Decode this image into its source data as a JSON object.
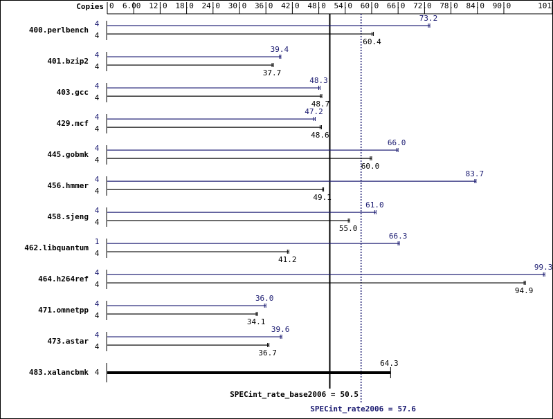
{
  "chart_data": {
    "type": "hbar",
    "copies_label": "Copies",
    "categories": [
      "400.perlbench",
      "401.bzip2",
      "403.gcc",
      "429.mcf",
      "445.gobmk",
      "456.hmmer",
      "458.sjeng",
      "462.libquantum",
      "464.h264ref",
      "471.omnetpp",
      "473.astar",
      "483.xalancbmk"
    ],
    "series": [
      {
        "color": "#191970",
        "values": [
          73.2,
          39.4,
          48.3,
          47.2,
          66.0,
          83.7,
          61.0,
          66.3,
          99.3,
          36.0,
          39.6,
          null
        ],
        "value_labels": [
          "73.2",
          "39.4",
          "48.3",
          "47.2",
          "66.0",
          "83.7",
          "61.0",
          "66.3",
          "99.3",
          "36.0",
          "39.6",
          null
        ],
        "copies": [
          4,
          4,
          4,
          4,
          4,
          4,
          4,
          1,
          4,
          4,
          4,
          null
        ]
      },
      {
        "color": "#000000",
        "values": [
          60.4,
          37.7,
          48.7,
          48.6,
          60.0,
          49.1,
          55.0,
          41.2,
          94.9,
          34.1,
          36.7,
          64.3
        ],
        "value_labels": [
          "60.4",
          "37.7",
          "48.7",
          "48.6",
          "60.0",
          "49.1",
          "55.0",
          "41.2",
          "94.9",
          "34.1",
          "36.7",
          "64.3"
        ],
        "copies": [
          4,
          4,
          4,
          4,
          4,
          4,
          4,
          4,
          4,
          4,
          4,
          4
        ]
      }
    ],
    "xlim": [
      0,
      101
    ],
    "xticks": [
      0,
      {
        "value": 6,
        "label": "6.00"
      },
      {
        "value": 12,
        "label": "12.0"
      },
      {
        "value": 18,
        "label": "18.0"
      },
      {
        "value": 24,
        "label": "24.0"
      },
      {
        "value": 30,
        "label": "30.0"
      },
      {
        "value": 36,
        "label": "36.0"
      },
      {
        "value": 42,
        "label": "42.0"
      },
      {
        "value": 48,
        "label": "48.0"
      },
      {
        "value": 54,
        "label": "54.0"
      },
      {
        "value": 60,
        "label": "60.0"
      },
      {
        "value": 66,
        "label": "66.0"
      },
      {
        "value": 72,
        "label": "72.0"
      },
      {
        "value": 78,
        "label": "78.0"
      },
      {
        "value": 84,
        "label": "84.0"
      },
      {
        "value": 90,
        "label": "90.0"
      },
      101
    ],
    "grid": false,
    "reference_lines": [
      {
        "label": "SPECint_rate_base2006 =",
        "value": 50.5,
        "color": "#000000",
        "dashed": false
      },
      {
        "label": "SPECint_rate2006 =",
        "value": 57.6,
        "color": "#191970",
        "dashed": true
      }
    ]
  }
}
